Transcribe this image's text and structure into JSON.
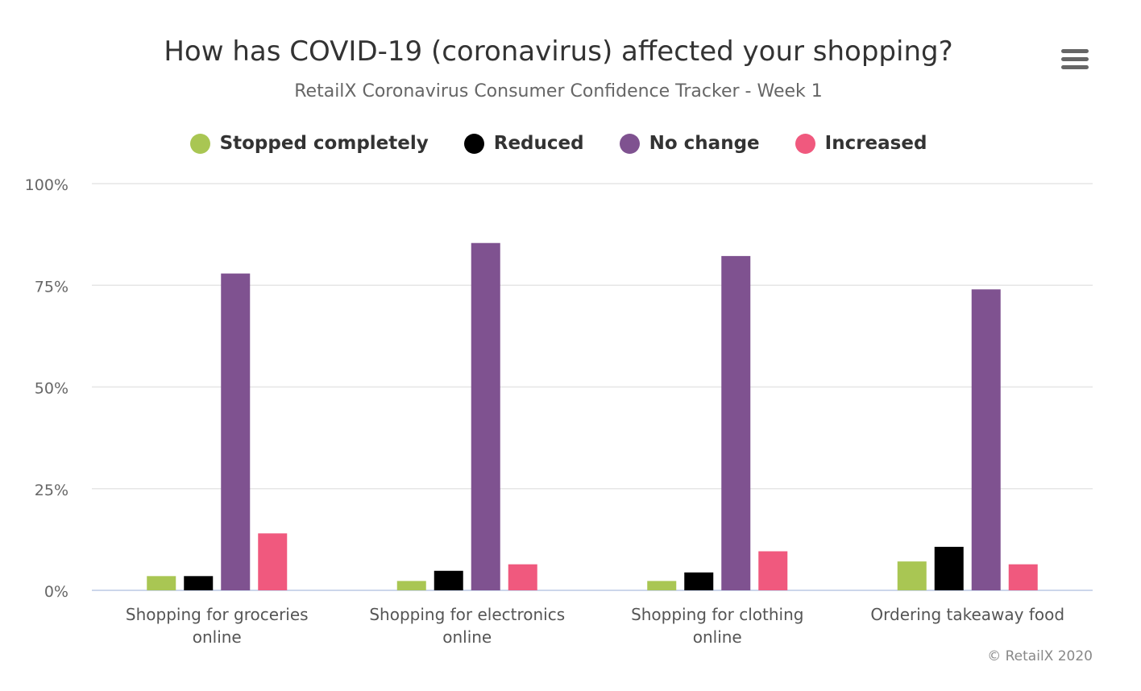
{
  "title": "How has COVID-19 (coronavirus) affected your shopping?",
  "subtitle": "RetailX Coronavirus Consumer Confidence Tracker - Week 1",
  "credits": "© RetailX 2020",
  "menu_icon": "hamburger-menu-icon",
  "chart_data": {
    "type": "bar",
    "title": "How has COVID-19 (coronavirus) affected your shopping?",
    "subtitle": "RetailX Coronavirus Consumer Confidence Tracker - Week 1",
    "categories": [
      [
        "Shopping for groceries",
        "online"
      ],
      [
        "Shopping for electronics",
        "online"
      ],
      [
        "Shopping for clothing",
        "online"
      ],
      [
        "Ordering takeaway food"
      ]
    ],
    "series": [
      {
        "name": "Stopped completely",
        "color": "#a9c653",
        "values": [
          3.5,
          2.3,
          2.3,
          7.1
        ]
      },
      {
        "name": "Reduced",
        "color": "#000000",
        "values": [
          3.5,
          4.8,
          4.4,
          10.7
        ]
      },
      {
        "name": "No change",
        "color": "#7f5290",
        "values": [
          77.9,
          85.4,
          82.2,
          74.0
        ]
      },
      {
        "name": "Increased",
        "color": "#f0597e",
        "values": [
          14.0,
          6.4,
          9.6,
          6.4
        ]
      }
    ],
    "ylim": [
      0,
      100
    ],
    "yticks": [
      "0%",
      "25%",
      "50%",
      "75%",
      "100%"
    ],
    "ytick_values": [
      0,
      25,
      50,
      75,
      100
    ],
    "grid": true,
    "legend_position": "top-center"
  }
}
